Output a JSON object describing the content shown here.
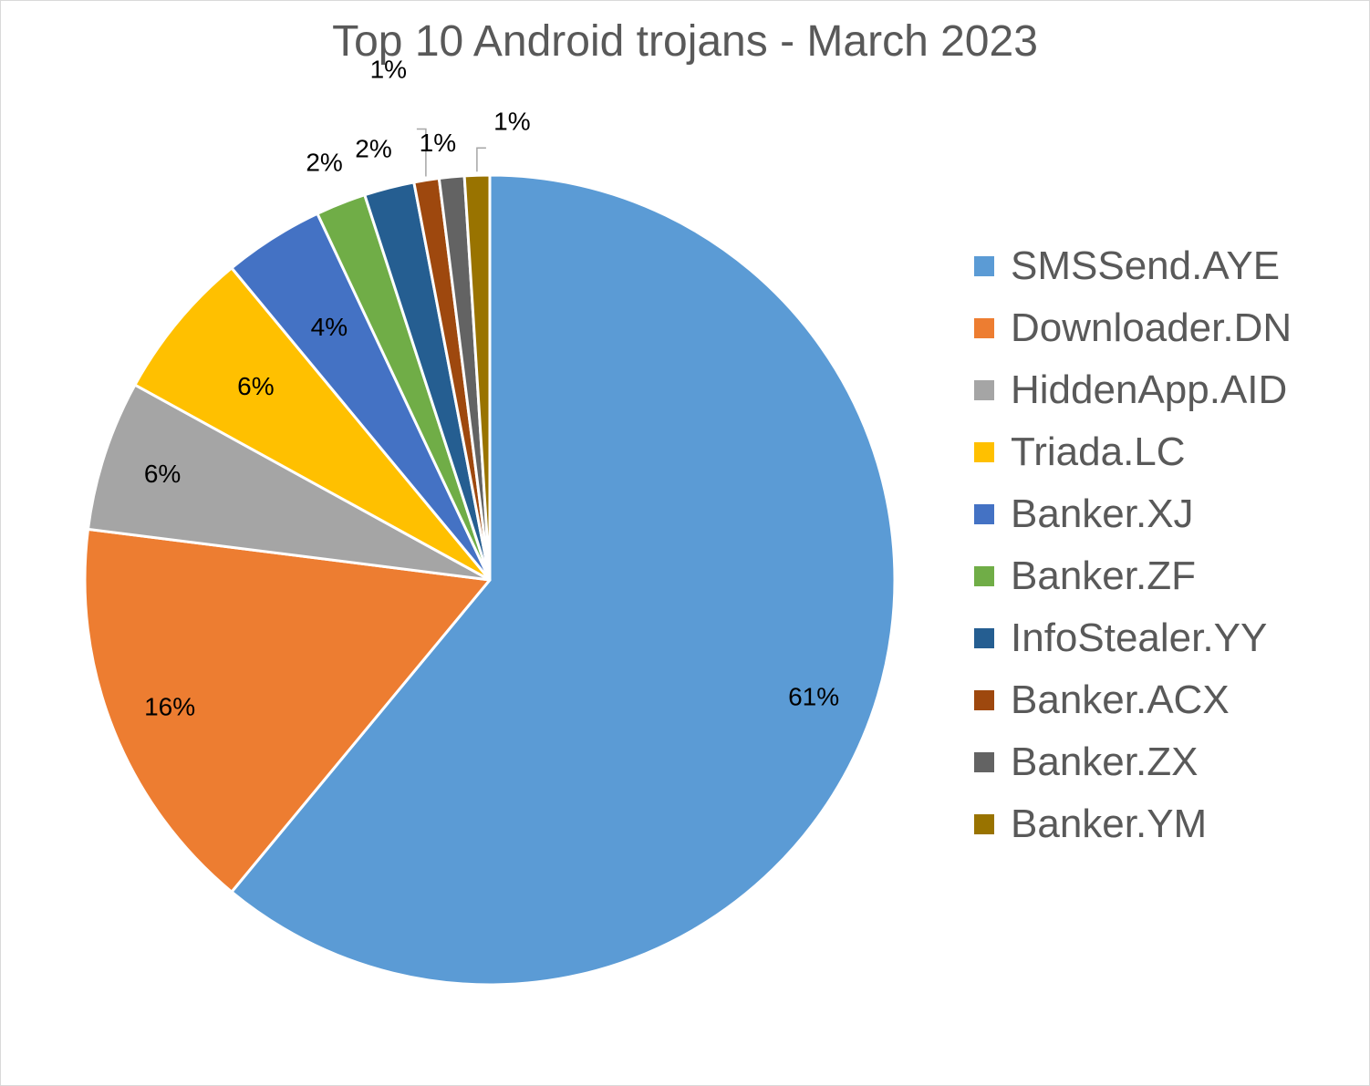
{
  "chart_data": {
    "type": "pie",
    "title": "Top 10 Android trojans - March 2023",
    "legend_position": "right",
    "slices": [
      {
        "name": "SMSSend.AYE",
        "value": 61,
        "label": "61%",
        "color": "#5B9BD5"
      },
      {
        "name": "Downloader.DN",
        "value": 16,
        "label": "16%",
        "color": "#ED7D31"
      },
      {
        "name": "HiddenApp.AID",
        "value": 6,
        "label": "6%",
        "color": "#A5A5A5"
      },
      {
        "name": "Triada.LC",
        "value": 6,
        "label": "6%",
        "color": "#FFC000"
      },
      {
        "name": "Banker.XJ",
        "value": 4,
        "label": "4%",
        "color": "#4472C4"
      },
      {
        "name": "Banker.ZF",
        "value": 2,
        "label": "2%",
        "color": "#70AD47"
      },
      {
        "name": "InfoStealer.YY",
        "value": 2,
        "label": "2%",
        "color": "#255E91"
      },
      {
        "name": "Banker.ACX",
        "value": 1,
        "label": "1%",
        "color": "#9E480E"
      },
      {
        "name": "Banker.ZX",
        "value": 1,
        "label": "1%",
        "color": "#636363"
      },
      {
        "name": "Banker.YM",
        "value": 1,
        "label": "1%",
        "color": "#997300"
      }
    ]
  }
}
